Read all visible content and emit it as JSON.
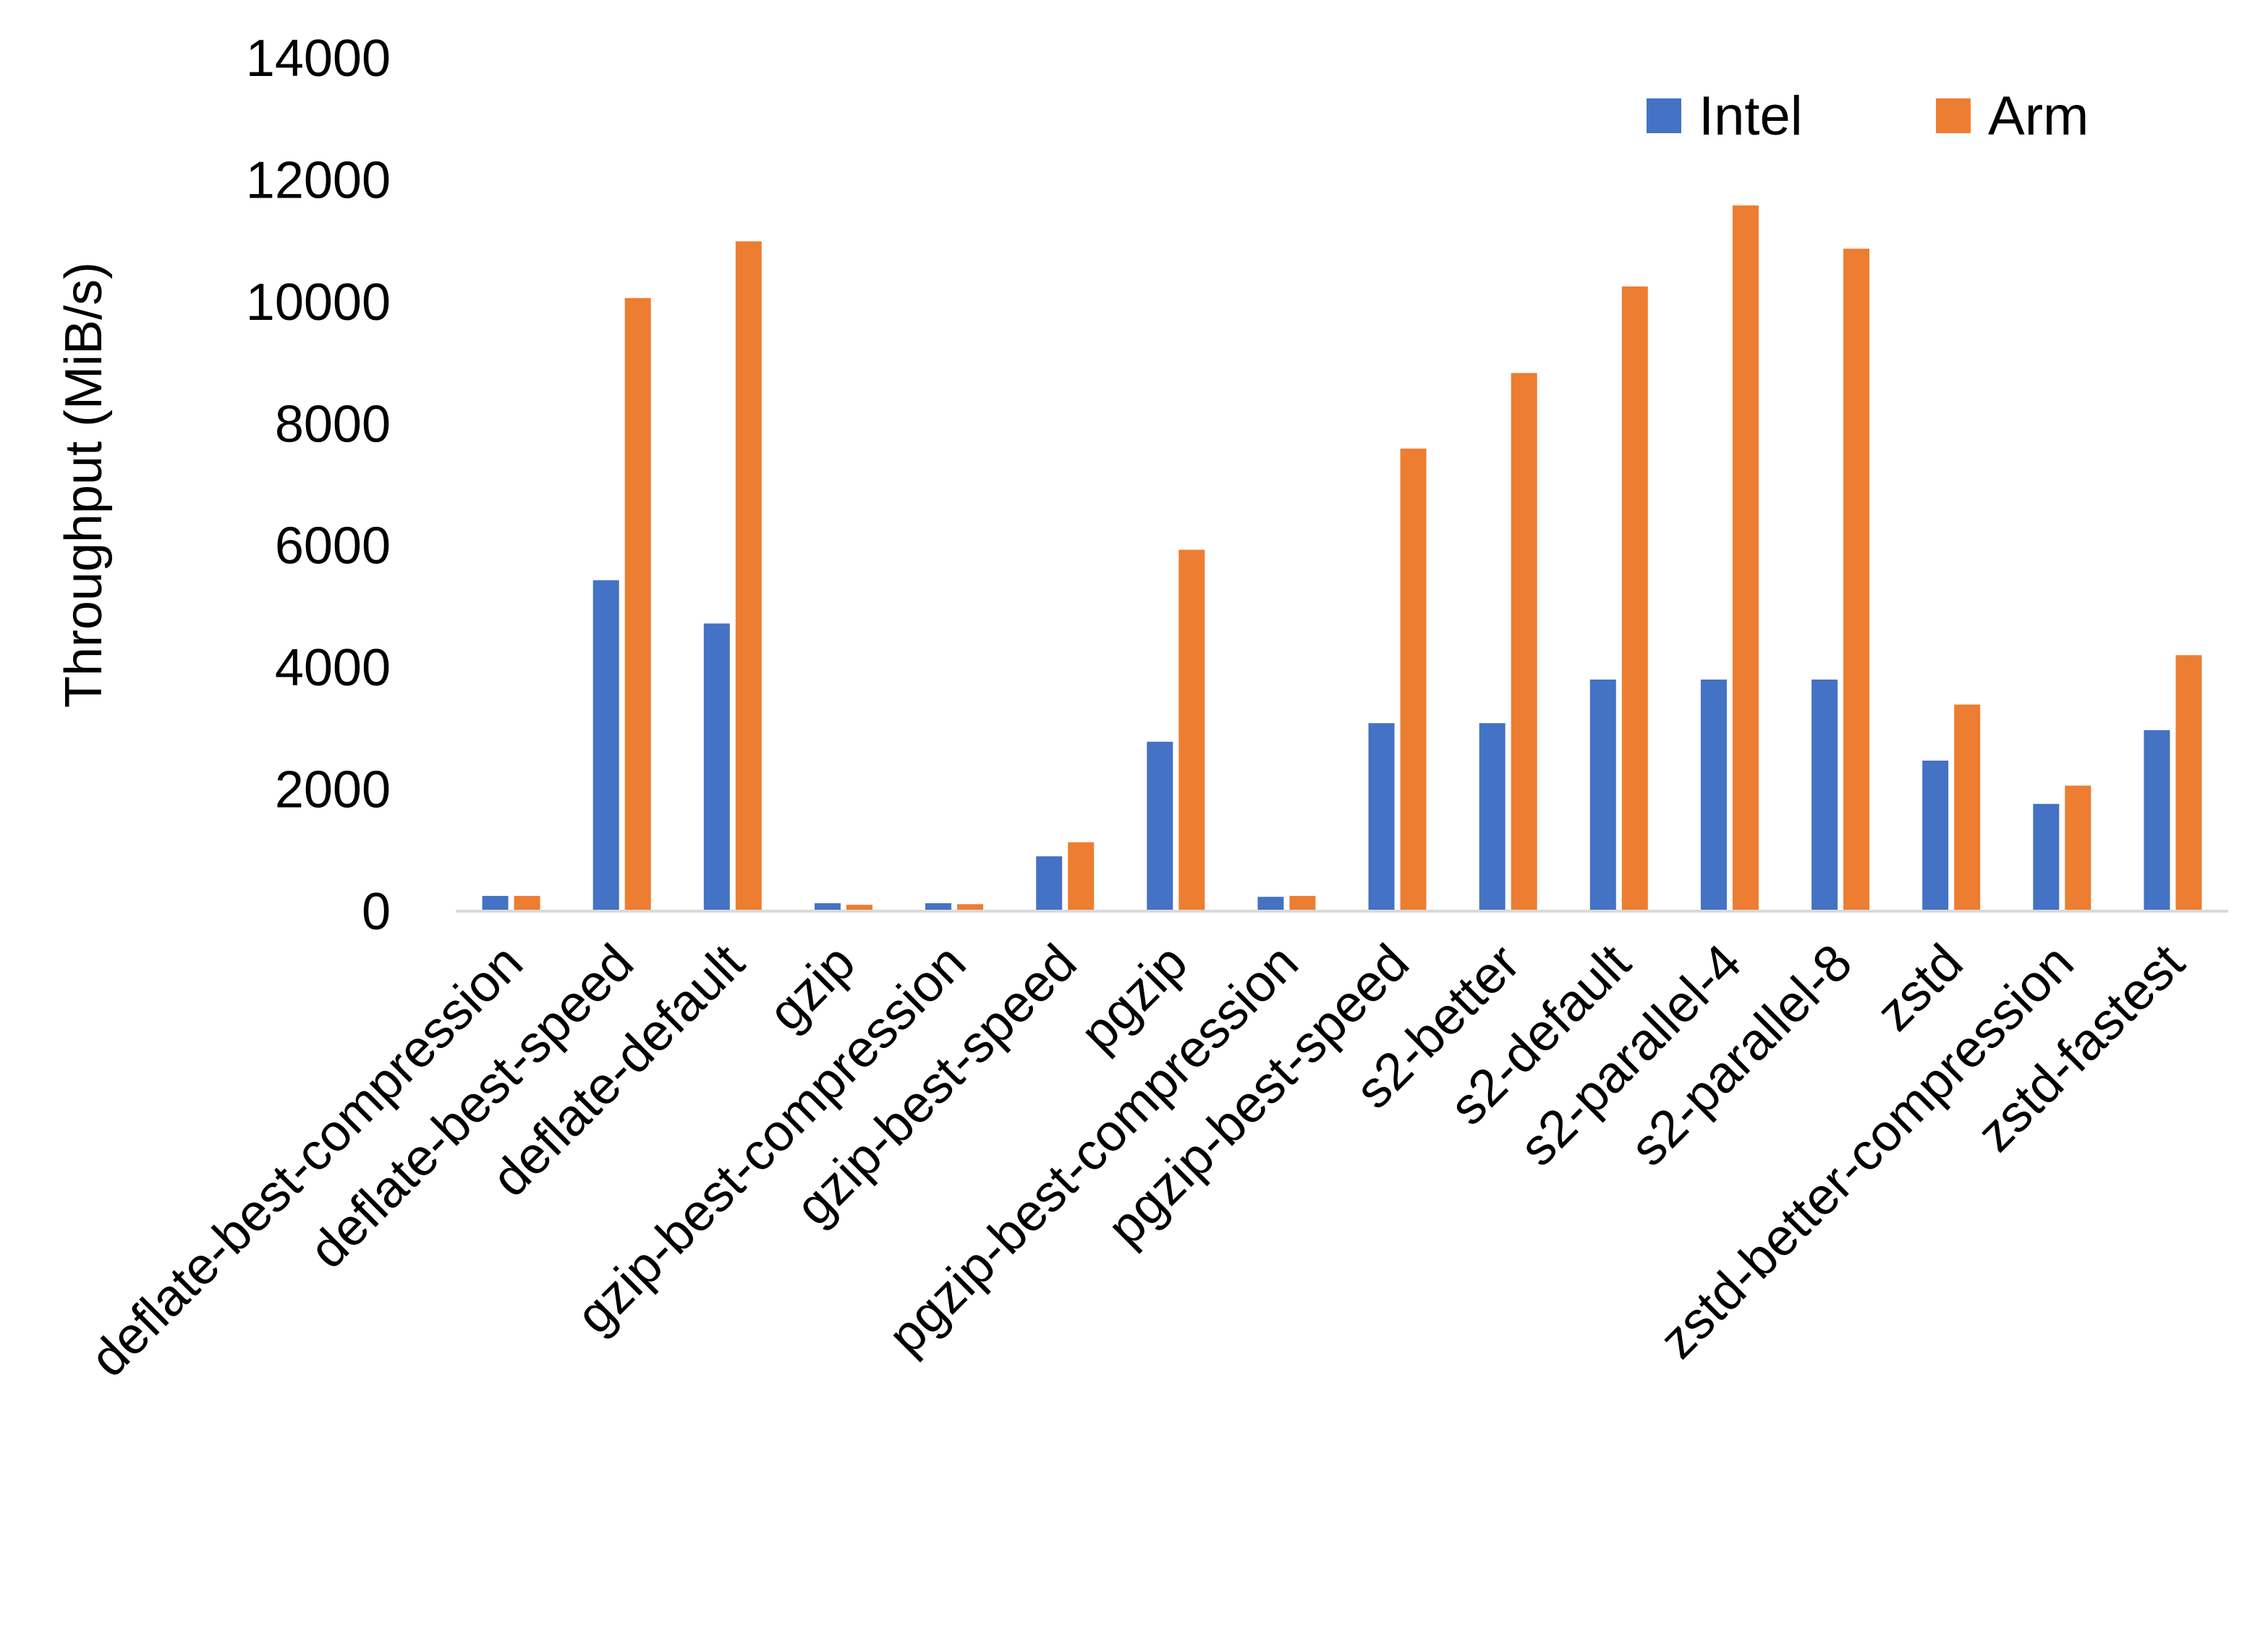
{
  "chart_data": {
    "type": "bar",
    "title": "",
    "xlabel": "",
    "ylabel": "Throughput (MiB/s)",
    "ylim": [
      0,
      14000
    ],
    "yticks": [
      0,
      2000,
      4000,
      6000,
      8000,
      10000,
      12000,
      14000
    ],
    "grid": false,
    "legend_position": "top-right",
    "categories": [
      "deflate-best-compression",
      "deflate-best-speed",
      "deflate-default",
      "gzip",
      "gzip-best-compression",
      "gzip-best-speed",
      "pgzip",
      "pgzip-best-compression",
      "pgzip-best-speed",
      "s2-better",
      "s2-default",
      "s2-parallel-4",
      "s2-parallel-8",
      "zstd",
      "zstd-better-compression",
      "zstd-fastest"
    ],
    "series": [
      {
        "name": "Intel",
        "color": "#4472C4",
        "values": [
          250,
          5430,
          4720,
          130,
          130,
          900,
          2780,
          235,
          3085,
          3085,
          3800,
          3800,
          3800,
          2470,
          1760,
          2970
        ]
      },
      {
        "name": "Arm",
        "color": "#ED7D31",
        "values": [
          250,
          10060,
          10990,
          105,
          115,
          1130,
          5930,
          250,
          7590,
          8830,
          10250,
          11580,
          10870,
          3390,
          2060,
          4200
        ]
      }
    ]
  }
}
